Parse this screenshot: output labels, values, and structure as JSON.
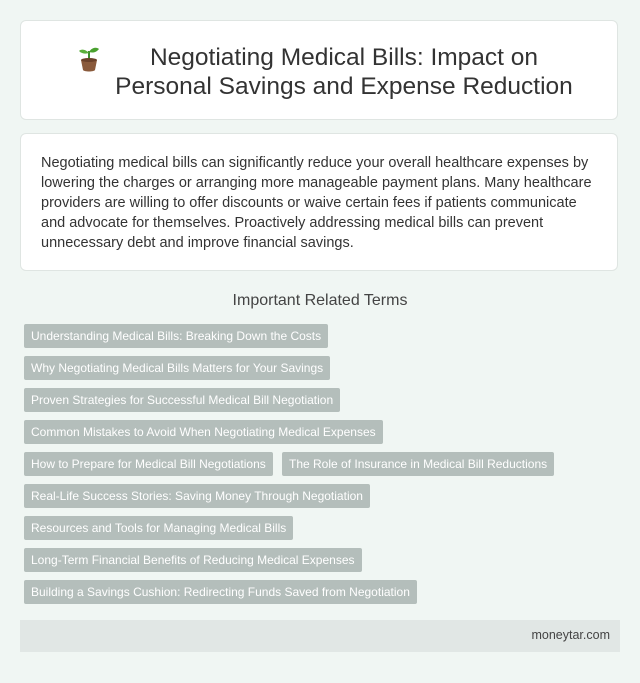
{
  "header": {
    "icon": "seedling-icon",
    "title": "Negotiating Medical Bills: Impact on Personal Savings and Expense Reduction"
  },
  "intro": {
    "text": "Negotiating medical bills can significantly reduce your overall healthcare expenses by lowering the charges or arranging more manageable payment plans. Many healthcare providers are willing to offer discounts or waive certain fees if patients communicate and advocate for themselves. Proactively addressing medical bills can prevent unnecessary debt and improve financial savings."
  },
  "related": {
    "title": "Important Related Terms",
    "tags": [
      "Understanding Medical Bills: Breaking Down the Costs",
      "Why Negotiating Medical Bills Matters for Your Savings",
      "Proven Strategies for Successful Medical Bill Negotiation",
      "Common Mistakes to Avoid When Negotiating Medical Expenses",
      "How to Prepare for Medical Bill Negotiations",
      "The Role of Insurance in Medical Bill Reductions",
      "Real-Life Success Stories: Saving Money Through Negotiation",
      "Resources and Tools for Managing Medical Bills",
      "Long-Term Financial Benefits of Reducing Medical Expenses",
      "Building a Savings Cushion: Redirecting Funds Saved from Negotiation"
    ]
  },
  "footer": {
    "site": "moneytar.com"
  },
  "colors": {
    "background": "#f0f6f3",
    "tag": "#b4bebb",
    "footer": "#e1e7e5"
  }
}
